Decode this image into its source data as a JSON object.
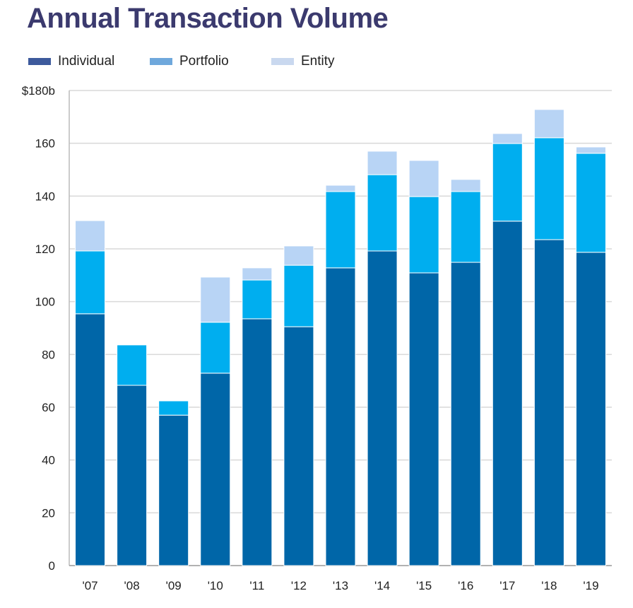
{
  "chart_data": {
    "type": "bar",
    "stacked": true,
    "title": "Annual Transaction Volume",
    "xlabel": "",
    "ylabel": "",
    "ylim": [
      0,
      180
    ],
    "yticks": [
      0,
      20,
      40,
      60,
      80,
      100,
      120,
      140,
      160,
      180
    ],
    "ytick_labels": [
      "0",
      "20",
      "40",
      "60",
      "80",
      "100",
      "120",
      "140",
      "160",
      "$180b"
    ],
    "grid": true,
    "legend_position": "top-left",
    "categories": [
      "'07",
      "'08",
      "'09",
      "'10",
      "'11",
      "'12",
      "'13",
      "'14",
      "'15",
      "'16",
      "'17",
      "'18",
      "'19"
    ],
    "series": [
      {
        "name": "Individual",
        "color": "#0066a8",
        "legend_color": "#3d5a9c",
        "values": [
          95.4,
          68.3,
          57.0,
          72.9,
          93.5,
          90.5,
          112.8,
          119.2,
          110.9,
          114.9,
          130.5,
          123.5,
          118.7
        ]
      },
      {
        "name": "Portfolio",
        "color": "#00aeef",
        "legend_color": "#6fa8dc",
        "values": [
          23.8,
          15.3,
          5.4,
          19.3,
          14.7,
          23.3,
          28.9,
          28.9,
          28.9,
          26.8,
          29.4,
          38.6,
          37.5
        ]
      },
      {
        "name": "Entity",
        "color": "#b8d4f5",
        "legend_color": "#c9d8ef",
        "values": [
          11.5,
          0,
          0,
          17.1,
          4.6,
          7.3,
          2.4,
          8.9,
          13.7,
          4.6,
          3.8,
          10.7,
          2.4
        ]
      }
    ]
  }
}
